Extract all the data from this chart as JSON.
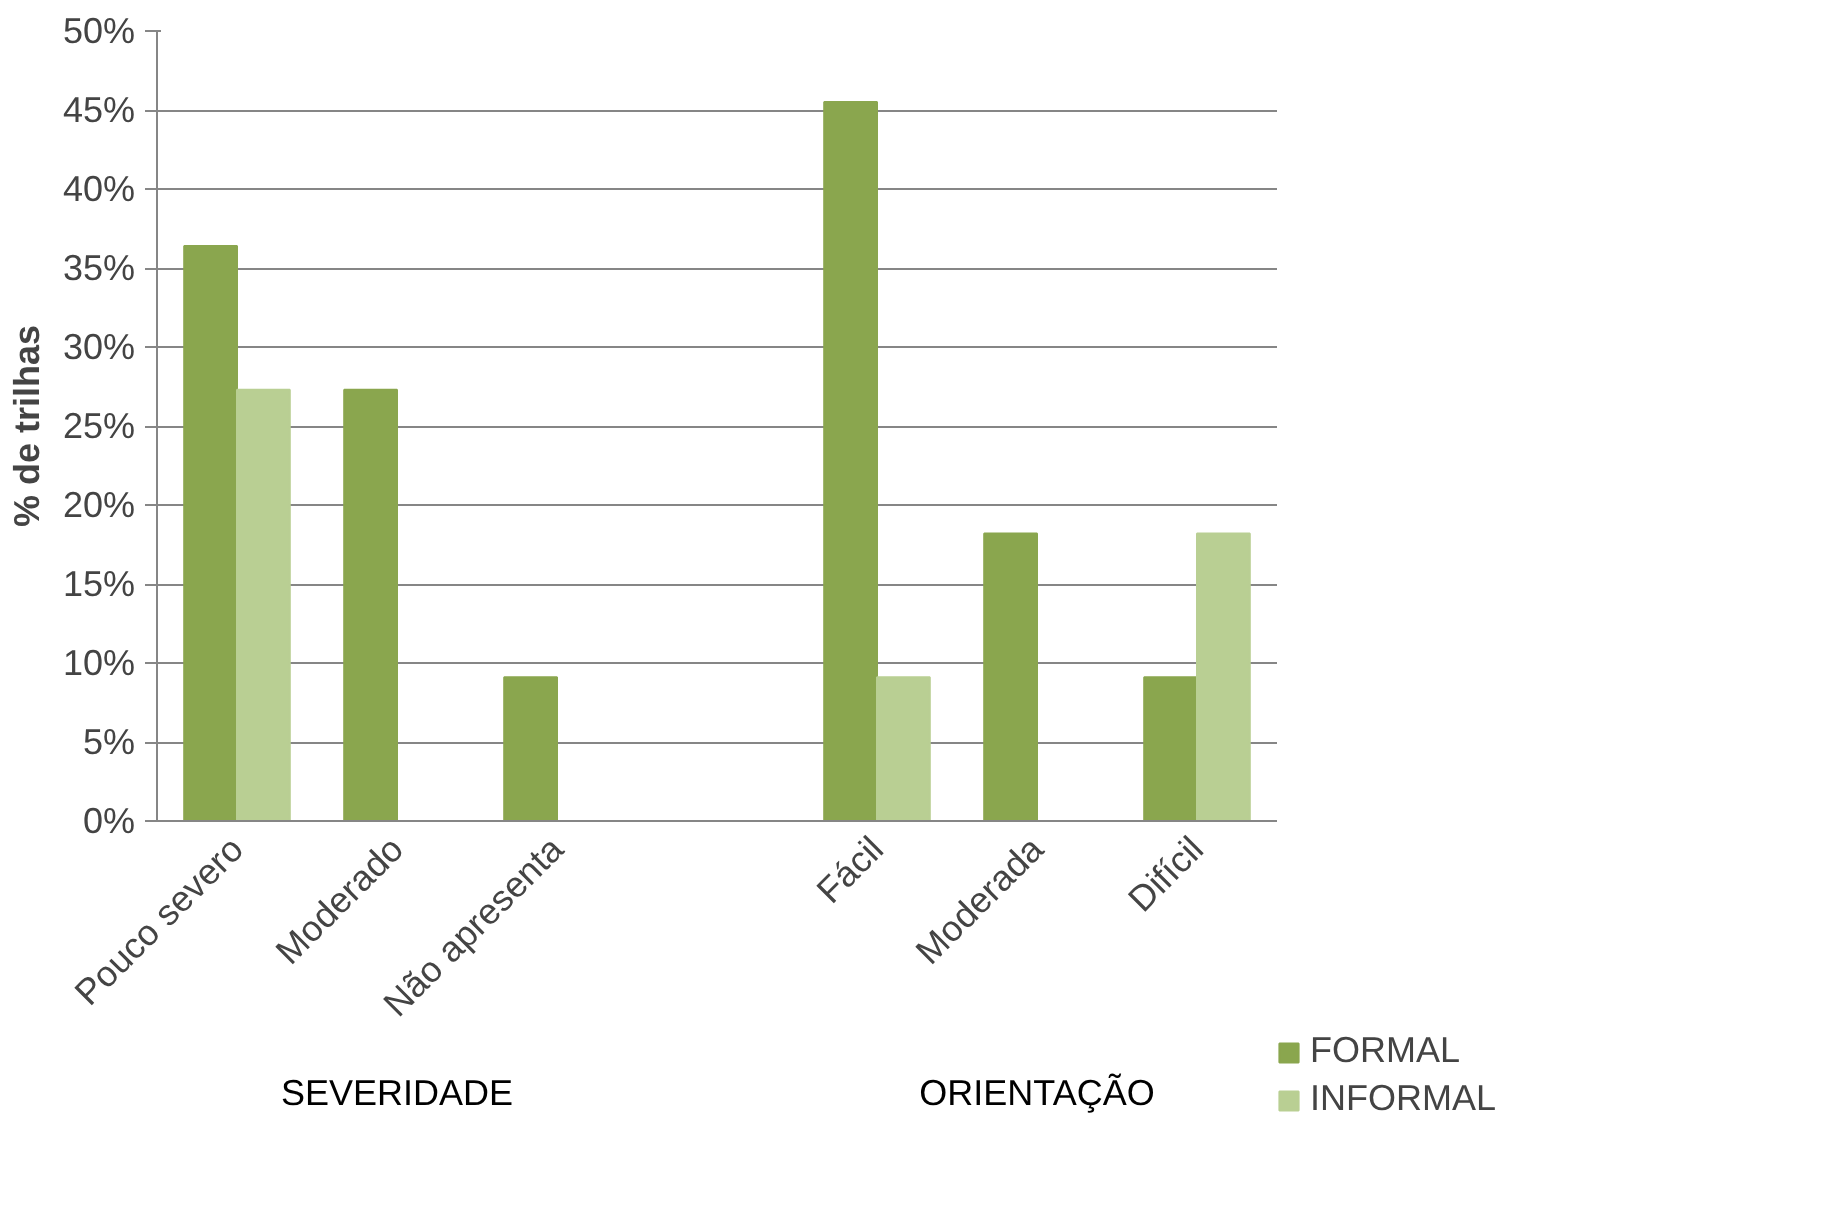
{
  "chart_data": {
    "type": "bar",
    "ylabel": "% de trilhas",
    "categories": [
      "Pouco severo",
      "Moderado",
      "Não apresenta",
      null,
      "Fácil",
      "Moderada",
      "Difícil"
    ],
    "series": [
      {
        "name": "FORMAL",
        "color": "#8aa64e",
        "values": [
          36.4,
          27.3,
          9.1,
          null,
          45.5,
          18.2,
          9.1
        ]
      },
      {
        "name": "INFORMAL",
        "color": "#b9cf93",
        "values": [
          27.3,
          null,
          null,
          null,
          9.1,
          null,
          18.2
        ]
      }
    ],
    "ylim": [
      0,
      50
    ],
    "yticks": [
      {
        "value": 0,
        "label": "0%"
      },
      {
        "value": 5,
        "label": "5%"
      },
      {
        "value": 10,
        "label": "10%"
      },
      {
        "value": 15,
        "label": "15%"
      },
      {
        "value": 20,
        "label": "20%"
      },
      {
        "value": 25,
        "label": "25%"
      },
      {
        "value": 30,
        "label": "30%"
      },
      {
        "value": 35,
        "label": "35%"
      },
      {
        "value": 40,
        "label": "40%"
      },
      {
        "value": 45,
        "label": "45%"
      },
      {
        "value": 50,
        "label": "50%"
      }
    ],
    "grid": "y",
    "legend": "right",
    "annotations": [
      "SEVERIDADE",
      "ORIENTAÇÃO"
    ]
  }
}
